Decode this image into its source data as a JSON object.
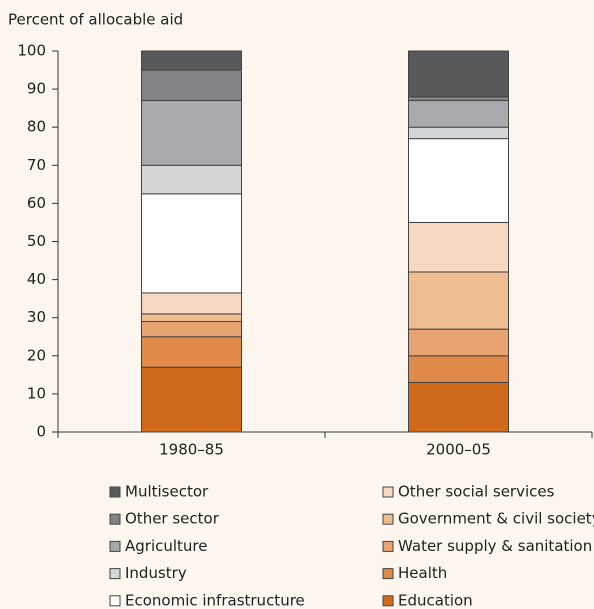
{
  "chart_data": {
    "type": "stacked-bar",
    "ylabel": "Percent of allocable aid",
    "categories": [
      "1980–85",
      "2000–05"
    ],
    "series": [
      {
        "name": "Education",
        "color": "#d06a1a",
        "values": [
          17,
          13
        ]
      },
      {
        "name": "Health",
        "color": "#df8a48",
        "values": [
          8,
          7
        ]
      },
      {
        "name": "Water supply & sanitation",
        "color": "#e8a373",
        "values": [
          4,
          7
        ]
      },
      {
        "name": "Government & civil society",
        "color": "#efbd92",
        "values": [
          2,
          15
        ]
      },
      {
        "name": "Other social services",
        "color": "#f7d9c3",
        "values": [
          5.5,
          13
        ]
      },
      {
        "name": "Economic infrastructure",
        "color": "#ffffff",
        "values": [
          26,
          22
        ]
      },
      {
        "name": "Industry",
        "color": "#d4d5d7",
        "values": [
          7.5,
          3
        ]
      },
      {
        "name": "Agriculture",
        "color": "#a7a9ac",
        "values": [
          17,
          7
        ]
      },
      {
        "name": "Other sector",
        "color": "#818386",
        "values": [
          8,
          1
        ]
      },
      {
        "name": "Multisector",
        "color": "#58595b",
        "values": [
          5,
          12
        ]
      }
    ],
    "ylim": [
      0,
      100
    ],
    "yticks": [
      0,
      10,
      20,
      30,
      40,
      50,
      60,
      70,
      80,
      90,
      100
    ]
  }
}
